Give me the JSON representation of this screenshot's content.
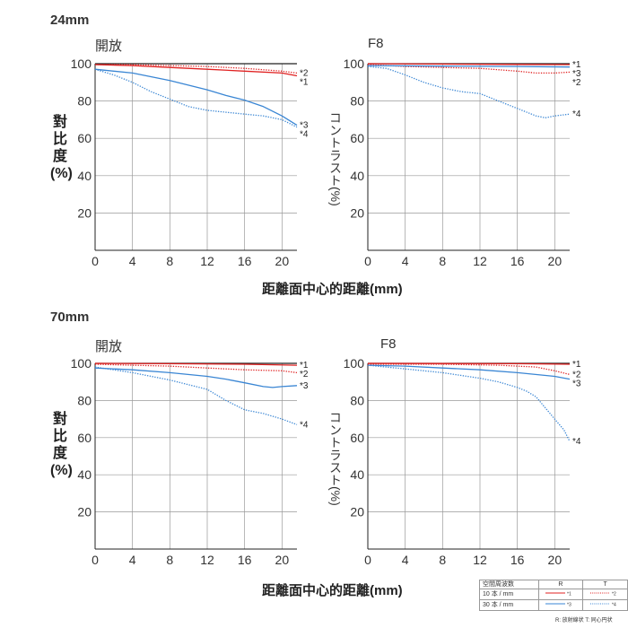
{
  "sections": [
    {
      "title": "24mm",
      "xlabel": "距離面中心的距離(mm)"
    },
    {
      "title": "70mm",
      "xlabel": "距離面中心的距離(mm)"
    }
  ],
  "ylabels": {
    "left": "對比度(%)",
    "right": "コントラスト(%)"
  },
  "colors": {
    "R": "#e02020",
    "T": "#3a86d4",
    "grid": "#999999",
    "frame": "#222222"
  },
  "legend": {
    "header": [
      "空間周波数",
      "R",
      "T"
    ],
    "rows": [
      {
        "label": "10 本 / mm",
        "r_mark": "*1",
        "t_mark": "*2"
      },
      {
        "label": "30 本 / mm",
        "r_mark": "*3",
        "t_mark": "*4"
      }
    ],
    "note": "R: 放射線状 T: 同心円状"
  },
  "chart_data": [
    {
      "type": "line",
      "title": "開放",
      "xlabel": "距離面中心的距離(mm)",
      "ylabel": "對比度(%)",
      "xlim": [
        0,
        21.6
      ],
      "ylim": [
        0,
        100
      ],
      "xticks": [
        0,
        4,
        8,
        12,
        16,
        20
      ],
      "yticks": [
        20,
        40,
        60,
        80,
        100
      ],
      "grid": true,
      "series": [
        {
          "name": "*1",
          "color": "red",
          "style": "solid",
          "x": [
            0,
            4,
            8,
            12,
            16,
            20,
            21.6
          ],
          "y": [
            99.5,
            99,
            98,
            97,
            96,
            95,
            93.5
          ]
        },
        {
          "name": "*2",
          "color": "red",
          "style": "dotted",
          "x": [
            0,
            4,
            8,
            12,
            16,
            20,
            21.6
          ],
          "y": [
            99.5,
            99.5,
            99,
            98.5,
            97.5,
            96,
            95
          ]
        },
        {
          "name": "*3",
          "color": "blue",
          "style": "solid",
          "x": [
            0,
            4,
            8,
            12,
            14,
            16,
            18,
            20,
            21.6
          ],
          "y": [
            97,
            95,
            91,
            86,
            83,
            80.5,
            77,
            72,
            67
          ]
        },
        {
          "name": "*4",
          "color": "blue",
          "style": "dotted",
          "x": [
            0,
            2,
            4,
            6,
            8,
            10,
            12,
            14,
            16,
            18,
            20,
            21.6
          ],
          "y": [
            97,
            94,
            90,
            85,
            81,
            77,
            75,
            74,
            73,
            72,
            70,
            66
          ]
        }
      ]
    },
    {
      "type": "line",
      "title": "F8",
      "xlabel": "距離面中心的距離(mm)",
      "ylabel": "コントラスト(%)",
      "xlim": [
        0,
        21.6
      ],
      "ylim": [
        0,
        100
      ],
      "xticks": [
        0,
        4,
        8,
        12,
        16,
        20
      ],
      "yticks": [
        20,
        40,
        60,
        80,
        100
      ],
      "grid": true,
      "series": [
        {
          "name": "*1",
          "color": "red",
          "style": "solid",
          "x": [
            0,
            8,
            16,
            21.6
          ],
          "y": [
            100,
            99.8,
            99.6,
            99.5
          ]
        },
        {
          "name": "*2",
          "color": "red",
          "style": "dotted",
          "x": [
            0,
            4,
            8,
            12,
            16,
            18,
            20,
            21.6
          ],
          "y": [
            99.5,
            98.5,
            98,
            97.5,
            96,
            95,
            95,
            95.5
          ]
        },
        {
          "name": "*3",
          "color": "blue",
          "style": "solid",
          "x": [
            0,
            8,
            16,
            21.6
          ],
          "y": [
            99,
            98.7,
            98.5,
            98.2
          ]
        },
        {
          "name": "*4",
          "color": "blue",
          "style": "dotted",
          "x": [
            0,
            2,
            4,
            6,
            8,
            10,
            12,
            14,
            16,
            18,
            19,
            20,
            21.6
          ],
          "y": [
            98.5,
            97.5,
            94,
            90,
            87,
            85,
            84,
            80,
            76,
            72,
            71,
            72,
            73
          ]
        }
      ]
    },
    {
      "type": "line",
      "title": "開放",
      "xlabel": "距離面中心的距離(mm)",
      "ylabel": "對比度(%)",
      "xlim": [
        0,
        21.6
      ],
      "ylim": [
        0,
        100
      ],
      "xticks": [
        0,
        4,
        8,
        12,
        16,
        20
      ],
      "yticks": [
        20,
        40,
        60,
        80,
        100
      ],
      "grid": true,
      "series": [
        {
          "name": "*1",
          "color": "red",
          "style": "solid",
          "x": [
            0,
            8,
            16,
            21.6
          ],
          "y": [
            100,
            99.8,
            99.5,
            99
          ]
        },
        {
          "name": "*2",
          "color": "red",
          "style": "dotted",
          "x": [
            0,
            4,
            8,
            12,
            16,
            20,
            21.6
          ],
          "y": [
            99.5,
            99,
            98.5,
            97.5,
            96.5,
            96,
            95
          ]
        },
        {
          "name": "*3",
          "color": "blue",
          "style": "solid",
          "x": [
            0,
            4,
            8,
            12,
            14,
            16,
            18,
            19,
            20,
            21.6
          ],
          "y": [
            97.5,
            96.5,
            95,
            93,
            91.5,
            89.5,
            87.5,
            87,
            87.5,
            88
          ]
        },
        {
          "name": "*4",
          "color": "blue",
          "style": "dotted",
          "x": [
            0,
            4,
            8,
            12,
            14,
            16,
            18,
            20,
            21.6
          ],
          "y": [
            98,
            95,
            91,
            86,
            80,
            75,
            73,
            70,
            67
          ]
        }
      ]
    },
    {
      "type": "line",
      "title": "F8",
      "xlabel": "距離面中心的距離(mm)",
      "ylabel": "コントラスト(%)",
      "xlim": [
        0,
        21.6
      ],
      "ylim": [
        0,
        100
      ],
      "xticks": [
        0,
        4,
        8,
        12,
        16,
        20
      ],
      "yticks": [
        20,
        40,
        60,
        80,
        100
      ],
      "grid": true,
      "series": [
        {
          "name": "*1",
          "color": "red",
          "style": "solid",
          "x": [
            0,
            8,
            16,
            21.6
          ],
          "y": [
            100,
            99.9,
            99.8,
            99.5
          ]
        },
        {
          "name": "*2",
          "color": "red",
          "style": "dotted",
          "x": [
            0,
            8,
            14,
            18,
            20,
            21.6
          ],
          "y": [
            99.5,
            99.5,
            99,
            98,
            96,
            94
          ]
        },
        {
          "name": "*3",
          "color": "blue",
          "style": "solid",
          "x": [
            0,
            4,
            8,
            12,
            16,
            20,
            21.6
          ],
          "y": [
            99,
            98.5,
            97.5,
            96.5,
            95,
            93,
            91.5
          ]
        },
        {
          "name": "*4",
          "color": "blue",
          "style": "dotted",
          "x": [
            0,
            4,
            8,
            12,
            14,
            16,
            17,
            18,
            19,
            20,
            21,
            21.6
          ],
          "y": [
            99,
            97,
            95,
            92,
            90,
            87,
            85,
            82,
            76,
            70,
            64,
            58
          ]
        }
      ]
    }
  ]
}
